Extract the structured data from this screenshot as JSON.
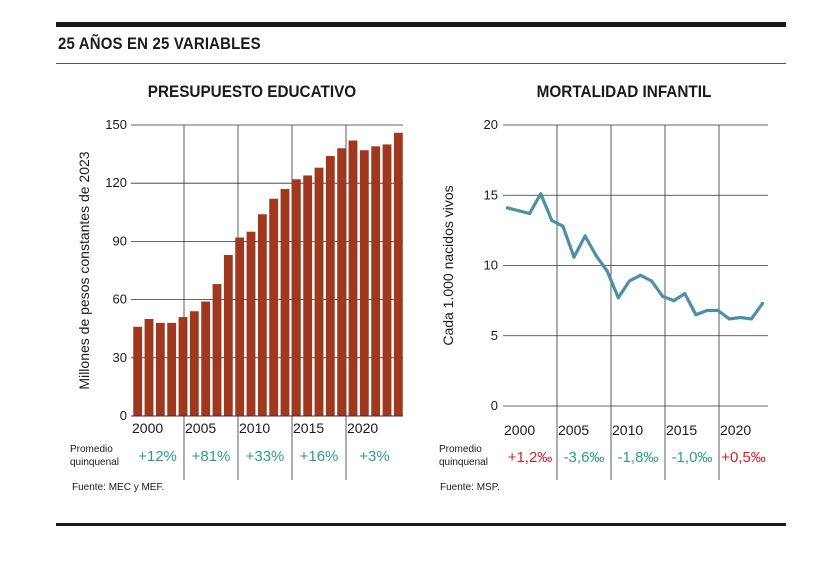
{
  "header": {
    "title": "25 AÑOS EN 25 VARIABLES"
  },
  "colors": {
    "bar": "#a0381f",
    "line": "#4f8fa6",
    "positive_green": "#2e9c8a",
    "negative_red": "#d6202a",
    "grid": "#333333"
  },
  "row_label_line1": "Promedio",
  "row_label_line2": "quinquenal",
  "chart_data": [
    {
      "type": "bar",
      "title": "PRESUPUESTO EDUCATIVO",
      "ylabel": "Millones de pesos constantes de 2023",
      "ylim": [
        0,
        150
      ],
      "yticks": [
        0,
        30,
        60,
        90,
        120,
        150
      ],
      "x": [
        2000,
        2001,
        2002,
        2003,
        2004,
        2005,
        2006,
        2007,
        2008,
        2009,
        2010,
        2011,
        2012,
        2013,
        2014,
        2015,
        2016,
        2017,
        2018,
        2019,
        2020,
        2021,
        2022,
        2023
      ],
      "values": [
        46,
        50,
        48,
        48,
        51,
        54,
        59,
        68,
        83,
        92,
        95,
        104,
        112,
        117,
        122,
        124,
        128,
        134,
        138,
        142,
        137,
        139,
        140,
        146
      ],
      "year_labels": [
        "2000",
        "2005",
        "2010",
        "2015",
        "2020"
      ],
      "period_changes": [
        {
          "label": "+12%",
          "sign": "positive"
        },
        {
          "label": "+81%",
          "sign": "positive"
        },
        {
          "label": "+33%",
          "sign": "positive"
        },
        {
          "label": "+16%",
          "sign": "positive"
        },
        {
          "label": "+3%",
          "sign": "positive"
        }
      ],
      "source": "Fuente: MEC y MEF."
    },
    {
      "type": "line",
      "title": "MORTALIDAD INFANTIL",
      "ylabel": "Cada 1.000 nacidos vivos",
      "ylim": [
        0,
        20
      ],
      "yticks": [
        0,
        5,
        10,
        15,
        20
      ],
      "x": [
        1999,
        2000,
        2001,
        2002,
        2003,
        2004,
        2005,
        2006,
        2007,
        2008,
        2009,
        2010,
        2011,
        2012,
        2013,
        2014,
        2015,
        2016,
        2017,
        2018,
        2019,
        2020,
        2021,
        2022
      ],
      "values": [
        14.1,
        13.9,
        13.7,
        15.1,
        13.2,
        12.8,
        10.6,
        12.1,
        10.7,
        9.6,
        7.7,
        8.9,
        9.3,
        8.9,
        7.8,
        7.5,
        8.0,
        6.5,
        6.8,
        6.8,
        6.2,
        6.3,
        6.2,
        7.3
      ],
      "year_labels": [
        "2000",
        "2005",
        "2010",
        "2015",
        "2020"
      ],
      "period_changes": [
        {
          "label": "+1,2‰",
          "sign": "negative"
        },
        {
          "label": "-3,6‰",
          "sign": "positive"
        },
        {
          "label": "-1,8‰",
          "sign": "positive"
        },
        {
          "label": "-1,0‰",
          "sign": "positive"
        },
        {
          "label": "+0,5‰",
          "sign": "negative"
        }
      ],
      "source": "Fuente: MSP."
    }
  ]
}
